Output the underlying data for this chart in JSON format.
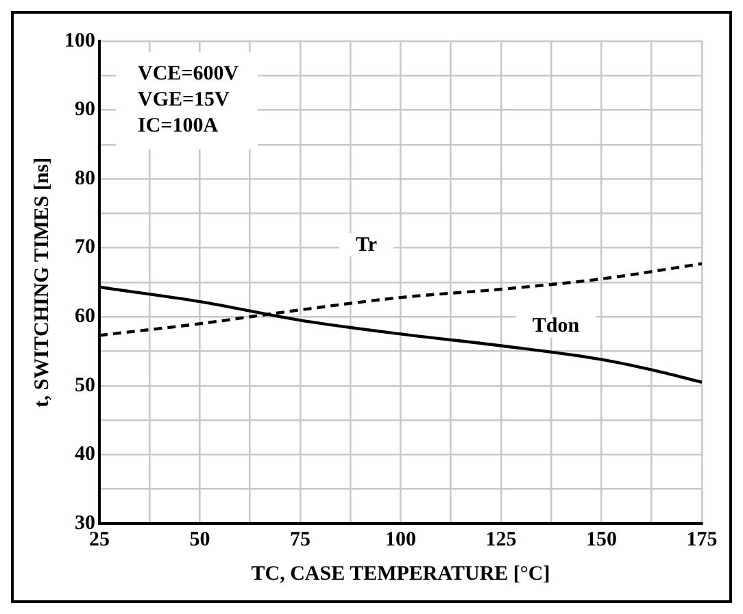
{
  "chart_data": {
    "type": "line",
    "xlabel": "TC, CASE TEMPERATURE [°C]",
    "ylabel": "t, SWITCHING TIMES [ns]",
    "annotations": [
      "VCE=600V",
      "VGE=15V",
      "IC=100A"
    ],
    "xlim": [
      25,
      175
    ],
    "xticks": [
      25,
      {
        "value": 37.5,
        "label": null
      },
      50,
      {
        "value": 62.5,
        "label": null
      },
      75,
      {
        "value": 87.5,
        "label": null
      },
      100,
      {
        "value": 112.5,
        "label": null
      },
      125,
      {
        "value": 137.5,
        "label": null
      },
      150,
      {
        "value": 162.5,
        "label": null
      },
      175
    ],
    "ylim": [
      30,
      100
    ],
    "yticks": [
      30,
      {
        "value": 35,
        "label": null
      },
      40,
      {
        "value": 45,
        "label": null
      },
      50,
      {
        "value": 55,
        "label": null
      },
      60,
      {
        "value": 65,
        "label": null
      },
      70,
      {
        "value": 75,
        "label": null
      },
      80,
      {
        "value": 85,
        "label": null
      },
      90,
      {
        "value": 95,
        "label": null
      },
      100
    ],
    "grid": true,
    "legend": false,
    "marker": "none",
    "series": [
      {
        "name": "Tdon",
        "color": "#000000",
        "line_style": "solid",
        "x": [
          25,
          50,
          75,
          100,
          125,
          150,
          162.5,
          175
        ],
        "values": [
          64.3,
          62.2,
          59.5,
          57.5,
          55.8,
          53.8,
          52.3,
          50.5
        ]
      },
      {
        "name": "Tr",
        "color": "#000000",
        "line_style": "dashed",
        "x": [
          25,
          50,
          75,
          100,
          125,
          150,
          175
        ],
        "values": [
          57.3,
          59,
          61,
          62.8,
          64,
          65.5,
          67.7
        ]
      }
    ]
  }
}
